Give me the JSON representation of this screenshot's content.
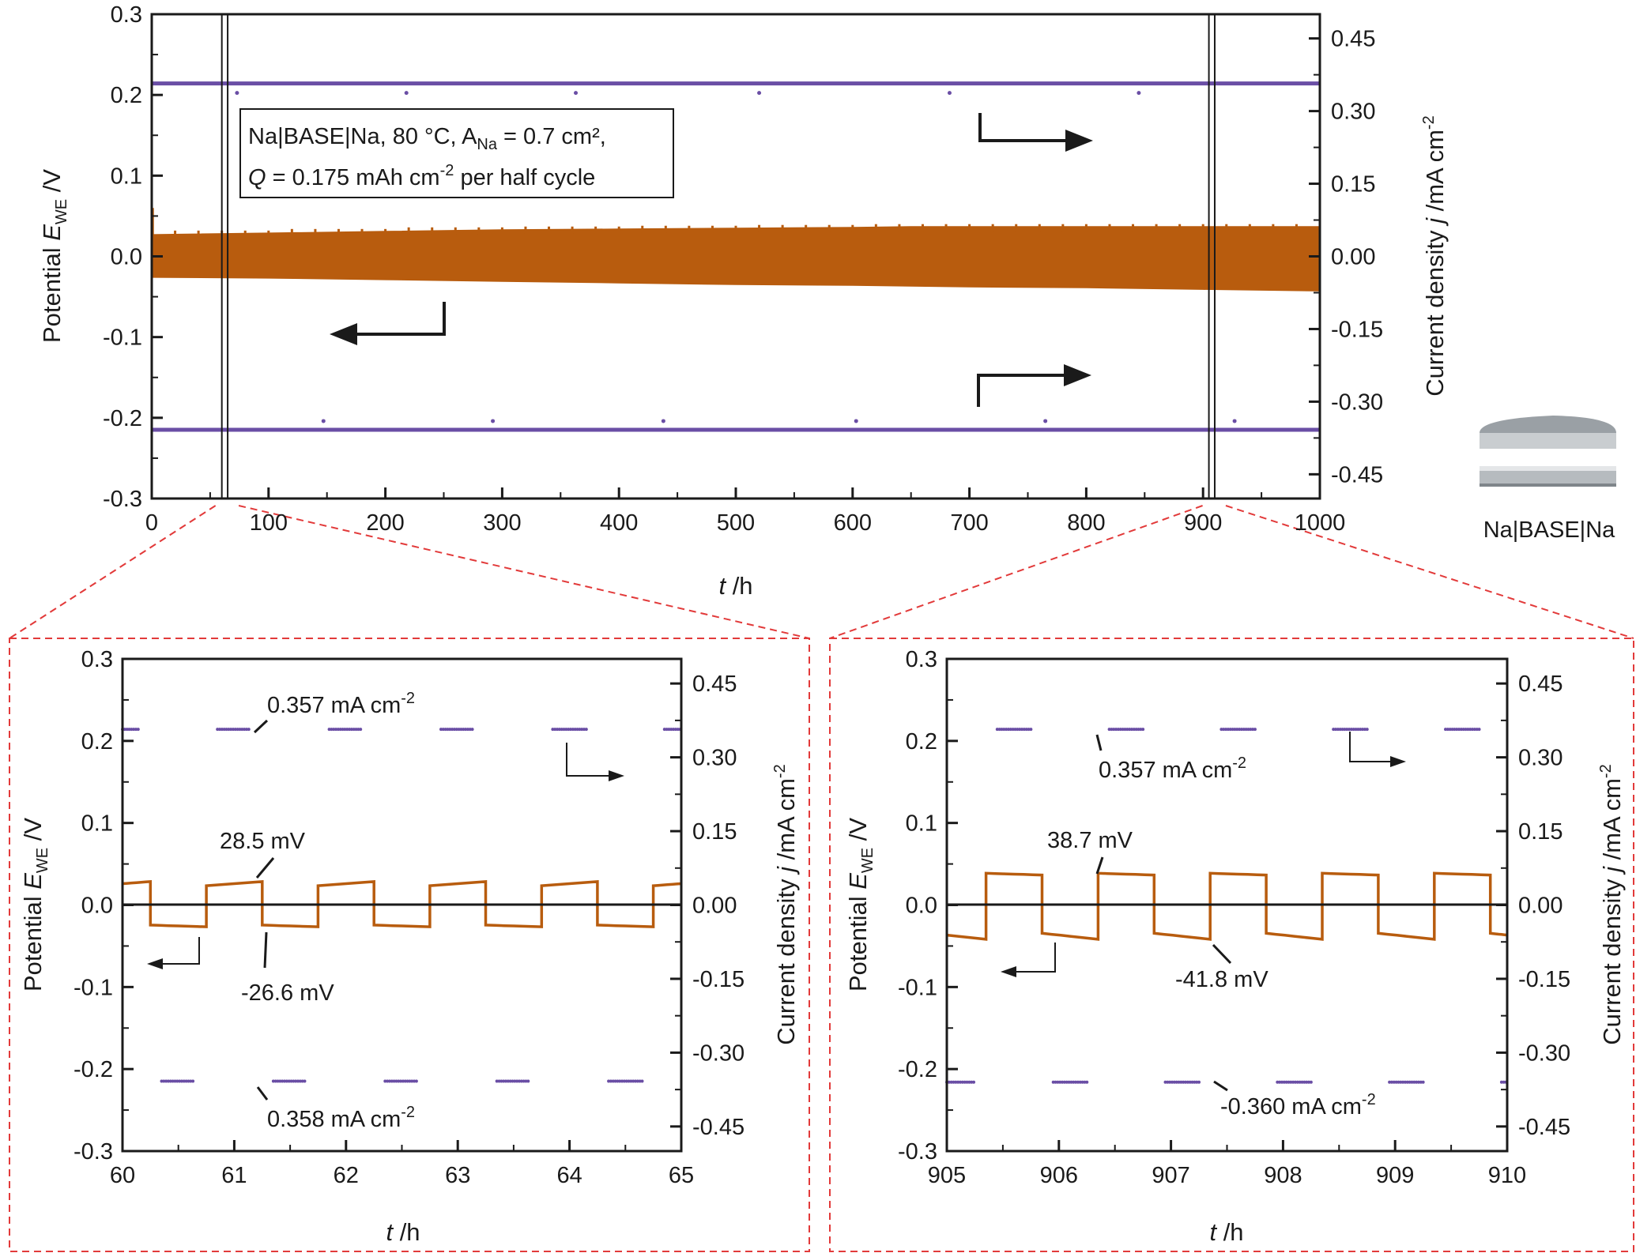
{
  "colors": {
    "potential": "#b85c0e",
    "current": "#6a4ea5",
    "zoom_box": "#e23a3a",
    "axis": "#1a1a1a"
  },
  "inset_caption": "Na|BASE|Na",
  "chart_data": [
    {
      "type": "line",
      "panel": "top",
      "xlabel": "t /h",
      "ylabel_left": "Potential E_WE /V",
      "ylabel_right": "Current density j /mA cm^-2",
      "xlim": [
        0,
        1000
      ],
      "ylim_left": [
        -0.3,
        0.3
      ],
      "ylim_right": [
        -0.5,
        0.5
      ],
      "x_ticks": [
        "0",
        "100",
        "200",
        "300",
        "400",
        "500",
        "600",
        "700",
        "800",
        "900",
        "1000"
      ],
      "y_ticks_left": [
        "-0.3",
        "-0.2",
        "-0.1",
        "0.0",
        "0.1",
        "0.2",
        "0.3"
      ],
      "y_ticks_right": [
        "-0.45",
        "-0.30",
        "-0.15",
        "0.00",
        "0.15",
        "0.30",
        "0.45"
      ],
      "legend_lines": [
        "Na|BASE|Na, 80 °C, A",
        "Na",
        " = 0.7 cm², ",
        "Q",
        " = 0.175 mAh cm",
        "-2",
        " per half cycle"
      ],
      "zoom_marks_h": [
        [
          60,
          65
        ],
        [
          905,
          910
        ]
      ],
      "series": [
        {
          "name": "Potential",
          "axis": "left",
          "style": "filled band",
          "x": [
            0,
            100,
            200,
            300,
            400,
            500,
            600,
            650,
            700,
            800,
            900,
            1000
          ],
          "upper": [
            0.027,
            0.029,
            0.031,
            0.033,
            0.034,
            0.035,
            0.036,
            0.037,
            0.037,
            0.037,
            0.037,
            0.037
          ],
          "lower": [
            -0.026,
            -0.027,
            -0.029,
            -0.031,
            -0.033,
            -0.035,
            -0.036,
            -0.037,
            -0.038,
            -0.039,
            -0.041,
            -0.043
          ]
        },
        {
          "name": "Current density (positive)",
          "axis": "right",
          "x": [
            0,
            1000
          ],
          "values": [
            0.357,
            0.357
          ]
        },
        {
          "name": "Current density (negative)",
          "axis": "right",
          "x": [
            0,
            1000
          ],
          "values": [
            -0.358,
            -0.358
          ]
        }
      ]
    },
    {
      "type": "line",
      "panel": "bottom-left",
      "xlabel": "t /h",
      "ylabel_left": "Potential E_WE /V",
      "ylabel_right": "Current density j /mA cm^-2",
      "xlim": [
        60,
        65
      ],
      "ylim_left": [
        -0.3,
        0.3
      ],
      "ylim_right": [
        -0.5,
        0.5
      ],
      "x_ticks": [
        "60",
        "61",
        "62",
        "63",
        "64",
        "65"
      ],
      "y_ticks_left": [
        "-0.3",
        "-0.2",
        "-0.1",
        "0.0",
        "0.1",
        "0.2",
        "0.3"
      ],
      "y_ticks_right": [
        "-0.45",
        "-0.30",
        "-0.15",
        "0.00",
        "0.15",
        "0.30",
        "0.45"
      ],
      "annotations": {
        "peak_pos": "28.5 mV",
        "peak_neg": "-26.6 mV",
        "j_pos": "0.357 mA cm",
        "j_neg": "0.358 mA cm",
        "sup": "-2"
      },
      "series": [
        {
          "name": "Potential",
          "axis": "left",
          "start": 59.75,
          "half_cycle_h": 0.5,
          "first_sign": 1,
          "plateau_start": 0.0235,
          "plateau_end": 0.0285,
          "neg_plateau_start": -0.0245,
          "neg_plateau_end": -0.0266
        },
        {
          "name": "Current density",
          "axis": "right",
          "level_pos": 0.357,
          "level_neg": -0.358
        }
      ]
    },
    {
      "type": "line",
      "panel": "bottom-right",
      "xlabel": "t /h",
      "ylabel_left": "Potential E_WE /V",
      "ylabel_right": "Current density j /mA cm^-2",
      "xlim": [
        905,
        910
      ],
      "ylim_left": [
        -0.3,
        0.3
      ],
      "ylim_right": [
        -0.5,
        0.5
      ],
      "x_ticks": [
        "905",
        "906",
        "907",
        "908",
        "909",
        "910"
      ],
      "y_ticks_left": [
        "-0.3",
        "-0.2",
        "-0.1",
        "0.0",
        "0.1",
        "0.2",
        "0.3"
      ],
      "y_ticks_right": [
        "-0.45",
        "-0.30",
        "-0.15",
        "0.00",
        "0.15",
        "0.30",
        "0.45"
      ],
      "annotations": {
        "peak_pos": "38.7 mV",
        "peak_neg": "-41.8 mV",
        "j_pos": "0.357 mA cm",
        "j_neg": "-0.360 mA cm",
        "sup": "-2"
      },
      "series": [
        {
          "name": "Potential",
          "axis": "left",
          "start": 904.85,
          "half_cycle_h": 0.5,
          "first_sign": -1,
          "plateau_start": 0.0387,
          "plateau_end": 0.0365,
          "neg_plateau_start": -0.0345,
          "neg_plateau_end": -0.0418
        },
        {
          "name": "Current density",
          "axis": "right",
          "level_pos": 0.357,
          "level_neg": -0.36
        }
      ]
    }
  ]
}
